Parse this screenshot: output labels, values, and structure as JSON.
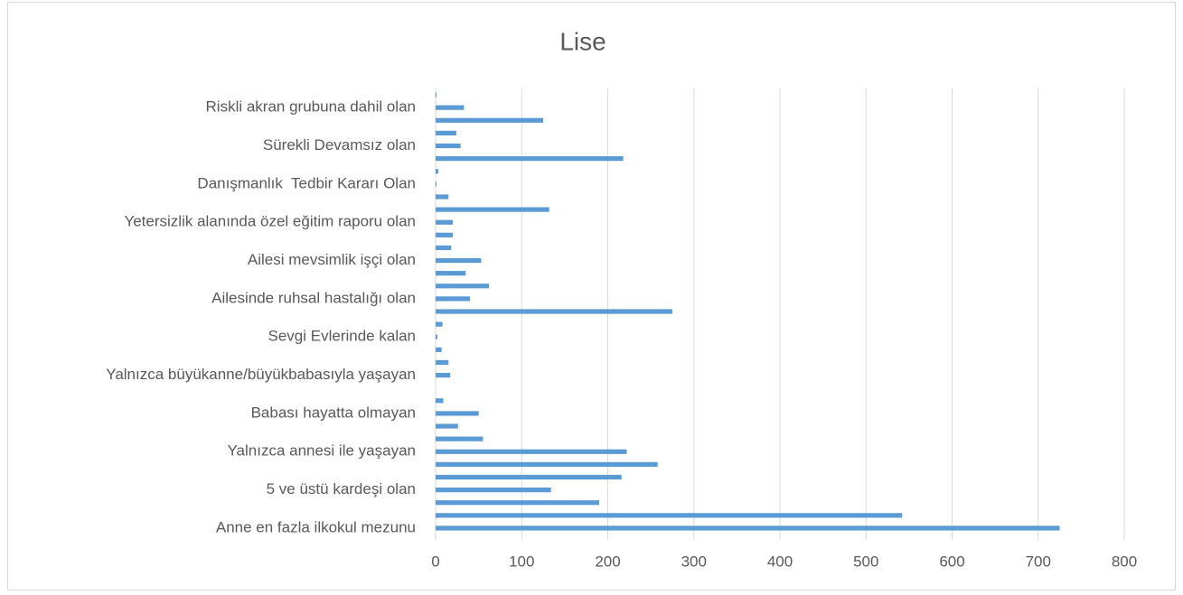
{
  "chart_data": {
    "type": "hbar",
    "title": "Lise",
    "categories": [
      "Anne en fazla ilkokul mezunu",
      null,
      null,
      "5 ve üstü kardeşi olan",
      null,
      null,
      "Yalnızca annesi ile yaşayan",
      null,
      null,
      "Babası hayatta olmayan",
      null,
      null,
      "Yalnızca büyükanne/büyükbabasıyla yaşayan",
      null,
      null,
      "Sevgi Evlerinde kalan",
      null,
      null,
      "Ailesinde ruhsal hastalığı olan",
      null,
      null,
      "Ailesi mevsimlik işçi olan",
      null,
      null,
      "Yetersizlik alanında özel eğitim raporu olan",
      null,
      null,
      "Danışmanlık  Tedbir Kararı Olan",
      null,
      null,
      "Sürekli Devamsız olan",
      null,
      null,
      "Riskli akran grubuna dahil olan",
      null
    ],
    "values": [
      725,
      542,
      190,
      134,
      216,
      258,
      222,
      55,
      26,
      50,
      9,
      0,
      17,
      15,
      7,
      2,
      8,
      275,
      40,
      62,
      35,
      53,
      18,
      20,
      20,
      132,
      15,
      1,
      3,
      218,
      29,
      24,
      125,
      33,
      1
    ],
    "color": "#5b9bd5",
    "xlim": [
      0,
      800
    ],
    "xticks": [
      0,
      100,
      200,
      300,
      400,
      500,
      600,
      700,
      800
    ],
    "grid": true
  }
}
